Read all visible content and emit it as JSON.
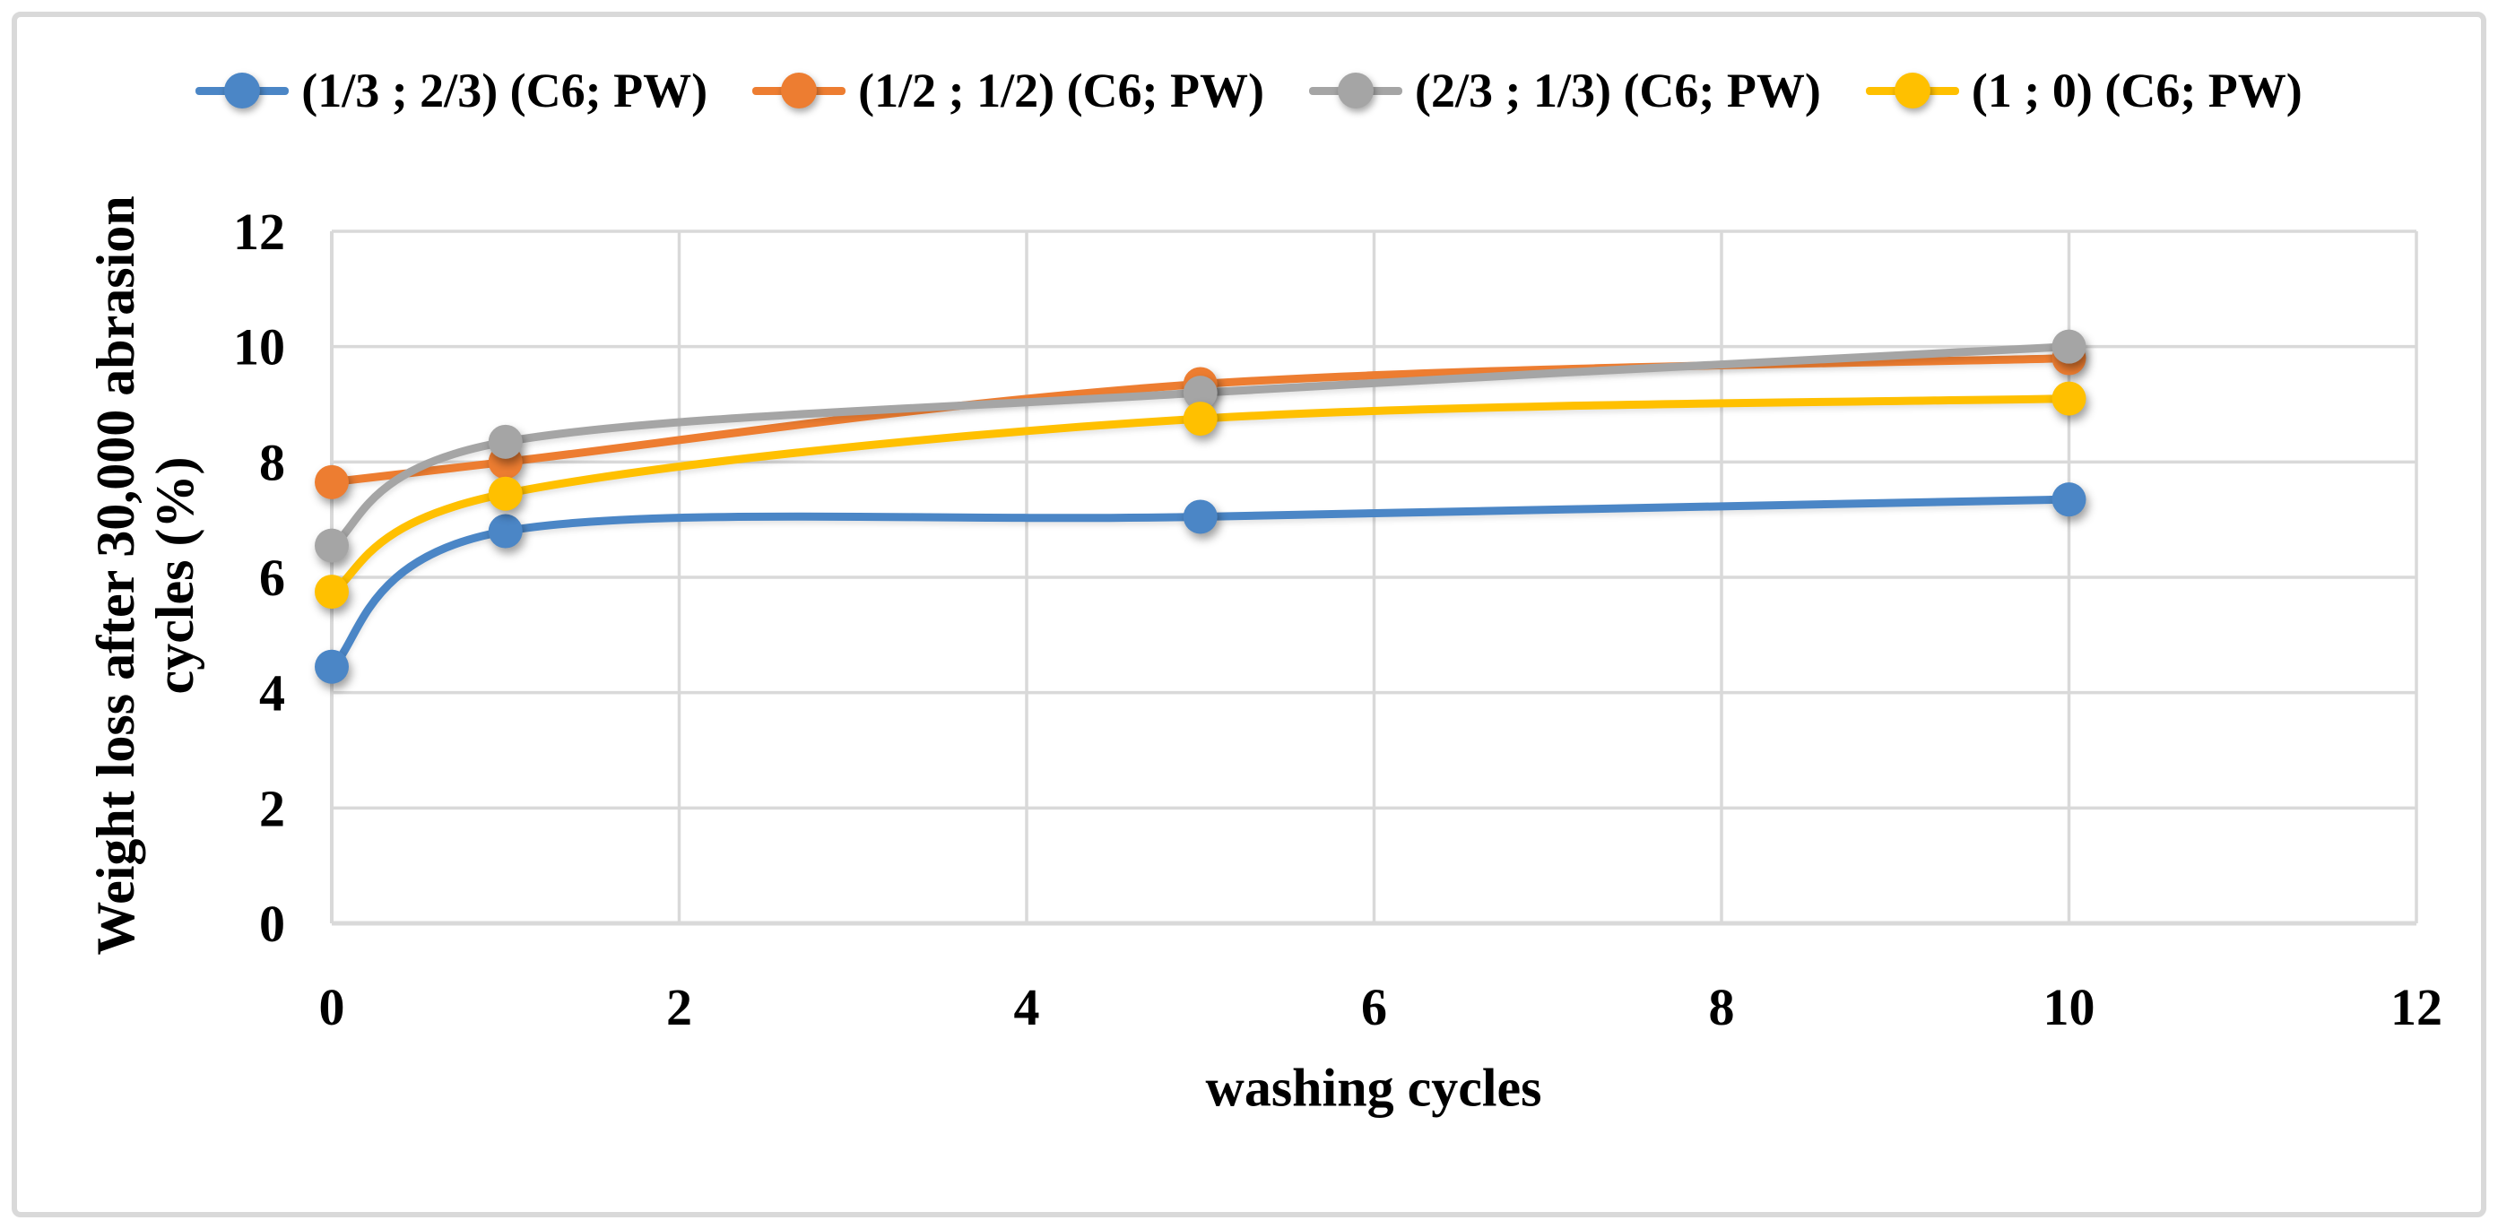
{
  "chart_data": {
    "type": "line",
    "title": "",
    "xlabel": "washing cycles",
    "ylabel": "Weight loss after 30,000 abrasion cycles (%)",
    "ylabel_lines": [
      "Weight loss after 30,000 abrasion",
      "cycles (%)"
    ],
    "x": [
      0,
      1,
      5,
      10
    ],
    "series": [
      {
        "name": "(1/3 ; 2/3) (C6; PW)",
        "color": "#4B86C6",
        "values": [
          4.45,
          6.8,
          7.05,
          7.35
        ]
      },
      {
        "name": "(1/2 ; 1/2) (C6; PW)",
        "color": "#ED7D31",
        "values": [
          7.65,
          8.0,
          9.35,
          9.8
        ]
      },
      {
        "name": "(2/3 ; 1/3) (C6; PW)",
        "color": "#A5A5A5",
        "values": [
          6.55,
          8.35,
          9.2,
          10.0
        ]
      },
      {
        "name": "(1 ; 0) (C6; PW)",
        "color": "#FFC000",
        "values": [
          5.75,
          7.45,
          8.75,
          9.1
        ]
      }
    ],
    "xlim": [
      0,
      12
    ],
    "ylim": [
      0,
      12
    ],
    "x_ticks": [
      0,
      2,
      4,
      6,
      8,
      10,
      12
    ],
    "y_ticks": [
      0,
      2,
      4,
      6,
      8,
      10,
      12
    ],
    "grid": true,
    "legend_position": "top",
    "smooth_lines": true,
    "marker": "circle"
  },
  "colors": {
    "gridline": "#D9D9D9",
    "axis_line": "#D9D9D9",
    "chart_border": "#D9D9D9",
    "text": "#000000",
    "background": "#FFFFFF"
  }
}
